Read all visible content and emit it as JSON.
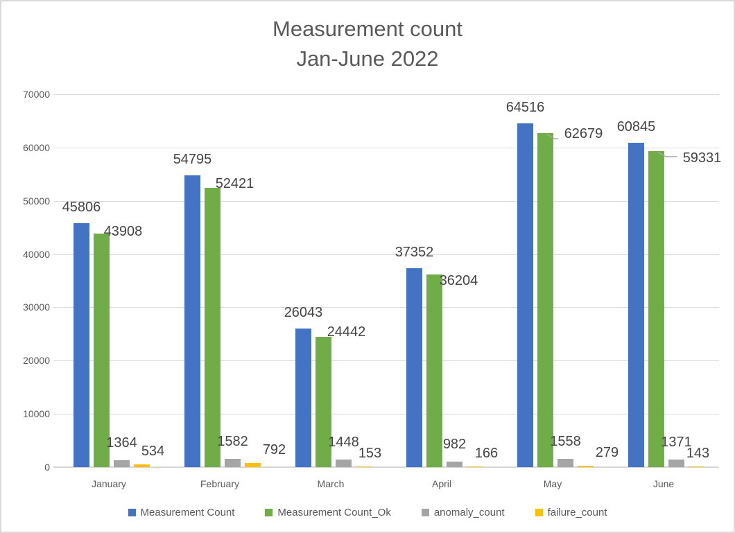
{
  "chart_data": {
    "type": "bar",
    "title": "Measurement count Jan-June 2022",
    "title_lines": [
      "Measurement count",
      "Jan-June 2022"
    ],
    "categories": [
      "January",
      "February",
      "March",
      "April",
      "May",
      "June"
    ],
    "series": [
      {
        "name": "Measurement Count",
        "color": "#4472C4",
        "values": [
          45806,
          54795,
          26043,
          37352,
          64516,
          60845
        ]
      },
      {
        "name": "Measurement Count_Ok",
        "color": "#70AD47",
        "values": [
          43908,
          52421,
          24442,
          36204,
          62679,
          59331
        ]
      },
      {
        "name": "anomaly_count",
        "color": "#A5A5A5",
        "values": [
          1364,
          1582,
          1448,
          982,
          1558,
          1371
        ]
      },
      {
        "name": "failure_count",
        "color": "#FFC000",
        "values": [
          534,
          792,
          153,
          166,
          279,
          143
        ]
      }
    ],
    "ylim": [
      0,
      70000
    ],
    "ytick_step": 10000,
    "ytick_labels": [
      "0",
      "10000",
      "20000",
      "30000",
      "40000",
      "50000",
      "60000",
      "70000"
    ],
    "grid": true,
    "data_labels": true,
    "legend_position": "bottom",
    "colors": {
      "title_text": "#595959",
      "axis_text": "#595959",
      "data_label_text": "#444444",
      "gridline": "#D9D9D9",
      "leader_line": "#A6A6A6"
    }
  }
}
